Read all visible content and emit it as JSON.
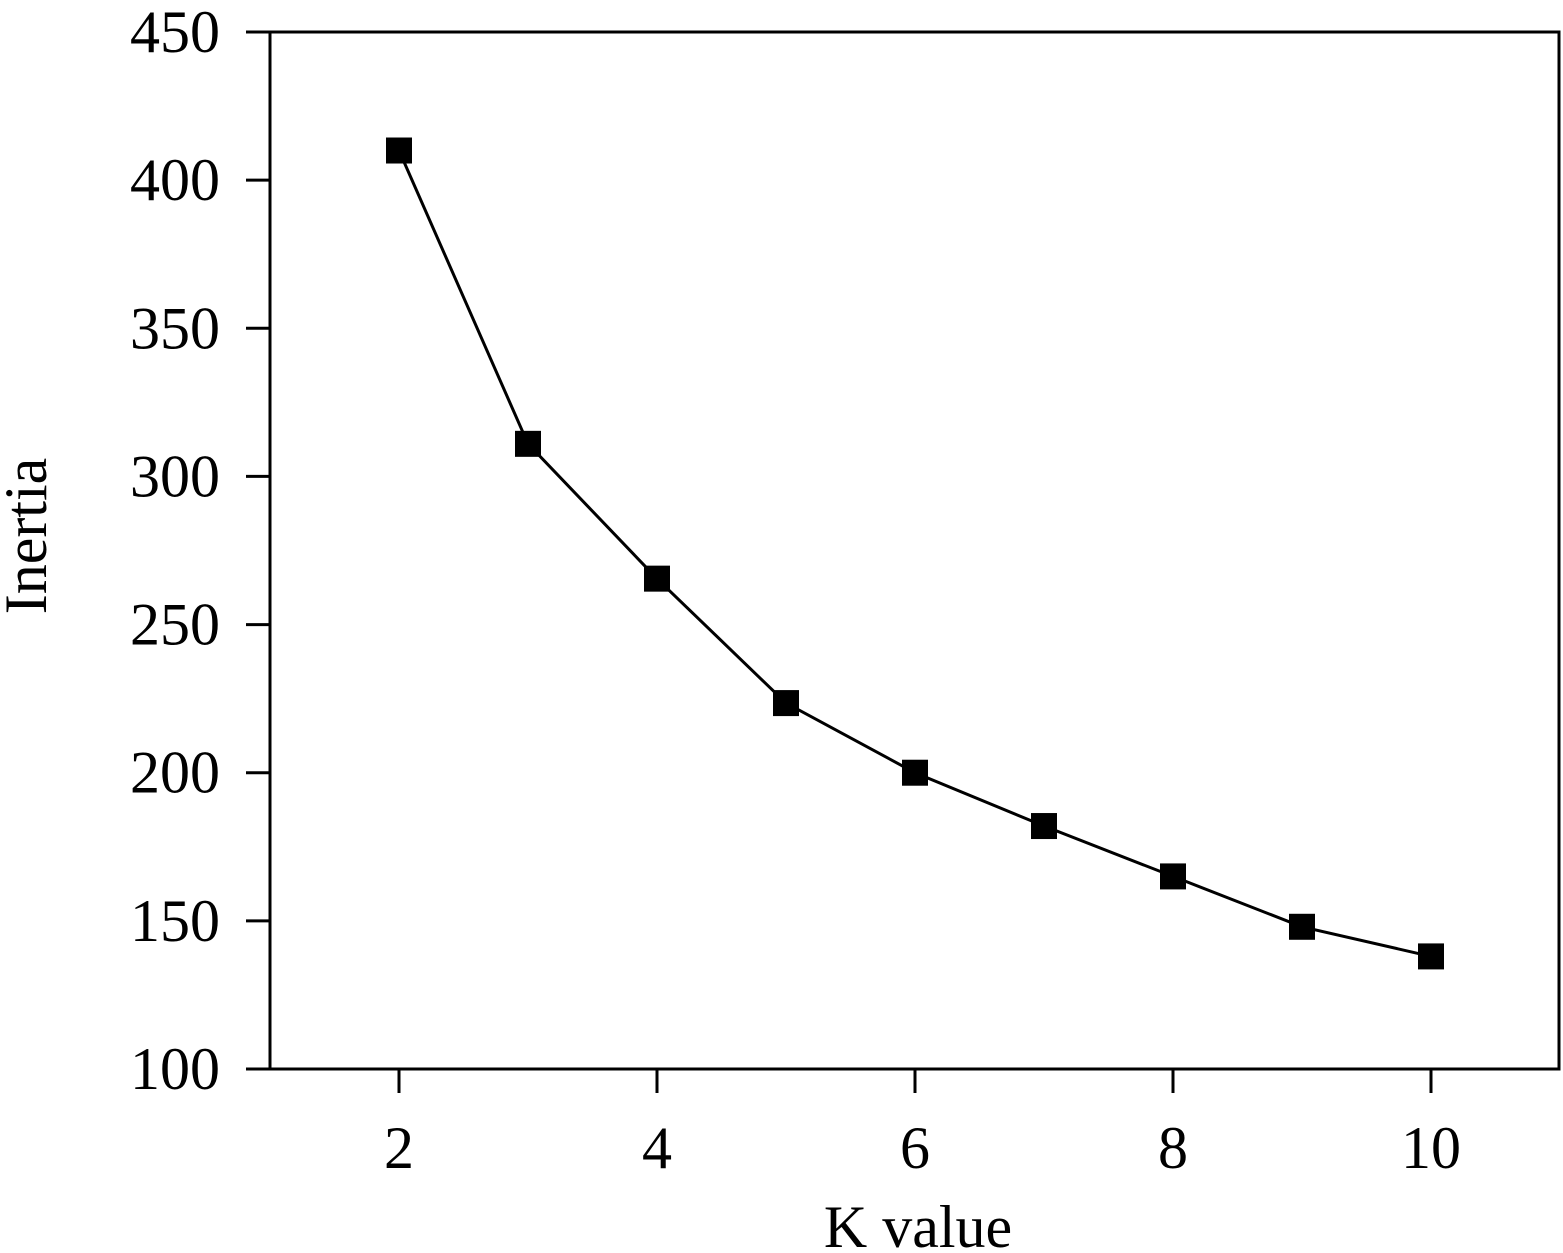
{
  "chart_data": {
    "type": "line",
    "title": "",
    "xlabel": "K value",
    "ylabel": "Inertia",
    "xlim": [
      1,
      11
    ],
    "ylim": [
      100,
      450
    ],
    "xticks": [
      2,
      4,
      6,
      8,
      10
    ],
    "yticks": [
      100,
      150,
      200,
      250,
      300,
      350,
      400,
      450
    ],
    "grid": false,
    "legend": "none",
    "marker": "square",
    "color": "#000000",
    "series": [
      {
        "x": [
          2,
          3,
          4,
          5,
          6,
          7,
          8,
          9,
          10
        ],
        "y": [
          410,
          311,
          265.5,
          223.5,
          200,
          182,
          165,
          148,
          138
        ]
      }
    ]
  }
}
